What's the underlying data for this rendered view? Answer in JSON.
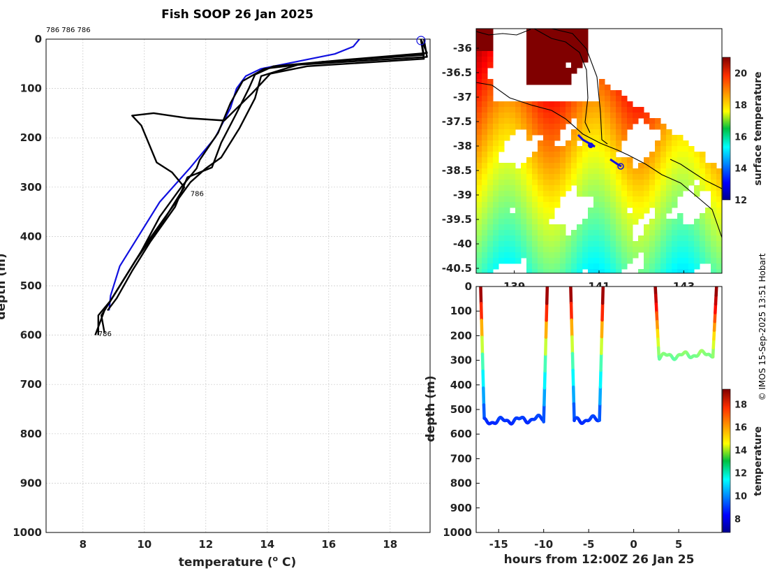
{
  "title": "Fish SOOP 26 Jan 2025",
  "credit": "© IMOS 15-Sep-2025 13:51 Hobart",
  "chart_data": [
    {
      "type": "line",
      "name": "profile",
      "title": "Fish SOOP 26 Jan 2025",
      "header_label": "786 786 786",
      "xlabel": "temperature (",
      "xlabel_sup": "o",
      "xlabel_end": " C)",
      "ylabel": "depth (m)",
      "xlim": [
        6.8,
        19.3
      ],
      "ylim": [
        0,
        1000
      ],
      "xticks": [
        8,
        10,
        12,
        14,
        16,
        18
      ],
      "yticks": [
        0,
        100,
        200,
        300,
        400,
        500,
        600,
        700,
        800,
        900,
        1000
      ],
      "annotations": [
        {
          "text": "786",
          "t": 11.5,
          "d": 318
        },
        {
          "text": "786",
          "t": 8.5,
          "d": 602
        }
      ],
      "series": [
        {
          "name": "blue reference",
          "color": "#1010e0",
          "points": [
            [
              17.0,
              0
            ],
            [
              16.8,
              15
            ],
            [
              16.2,
              30
            ],
            [
              15.0,
              45
            ],
            [
              13.8,
              60
            ],
            [
              13.3,
              75
            ],
            [
              13.0,
              100
            ],
            [
              12.8,
              140
            ],
            [
              12.3,
              200
            ],
            [
              11.5,
              260
            ],
            [
              10.5,
              330
            ],
            [
              9.8,
              400
            ],
            [
              9.2,
              460
            ],
            [
              8.9,
              520
            ],
            [
              8.85,
              550
            ]
          ]
        },
        {
          "name": "cast 1",
          "color": "#000000",
          "points": [
            [
              19.0,
              0
            ],
            [
              19.2,
              28
            ],
            [
              16.5,
              42
            ],
            [
              14.2,
              55
            ],
            [
              13.6,
              72
            ],
            [
              13.4,
              100
            ],
            [
              13.0,
              150
            ],
            [
              12.5,
              210
            ],
            [
              12.2,
              260
            ],
            [
              11.4,
              280
            ],
            [
              11.0,
              340
            ],
            [
              10.2,
              410
            ],
            [
              9.6,
              470
            ],
            [
              9.1,
              525
            ],
            [
              8.8,
              550
            ]
          ]
        },
        {
          "name": "cast 2",
          "color": "#000000",
          "points": [
            [
              19.0,
              0
            ],
            [
              19.1,
              32
            ],
            [
              15.8,
              46
            ],
            [
              13.9,
              60
            ],
            [
              13.2,
              85
            ],
            [
              12.8,
              130
            ],
            [
              12.4,
              190
            ],
            [
              11.8,
              245
            ],
            [
              11.7,
              262
            ],
            [
              11.2,
              300
            ],
            [
              10.5,
              360
            ],
            [
              9.9,
              430
            ],
            [
              9.2,
              500
            ],
            [
              8.7,
              550
            ],
            [
              8.4,
              600
            ]
          ]
        },
        {
          "name": "cast 3",
          "color": "#000000",
          "points": [
            [
              19.1,
              0
            ],
            [
              19.2,
              36
            ],
            [
              15.0,
              52
            ],
            [
              13.8,
              75
            ],
            [
              13.6,
              120
            ],
            [
              13.1,
              180
            ],
            [
              12.5,
              240
            ],
            [
              12.0,
              262
            ],
            [
              11.5,
              290
            ],
            [
              10.8,
              350
            ],
            [
              10.0,
              420
            ],
            [
              9.4,
              480
            ],
            [
              8.9,
              530
            ],
            [
              8.5,
              560
            ],
            [
              8.5,
              600
            ]
          ]
        },
        {
          "name": "cast 4",
          "color": "#000000",
          "points": [
            [
              19.0,
              0
            ],
            [
              19.1,
              40
            ],
            [
              15.3,
              55
            ],
            [
              14.1,
              70
            ],
            [
              13.5,
              110
            ],
            [
              12.6,
              165
            ],
            [
              11.4,
              160
            ],
            [
              10.3,
              150
            ],
            [
              9.6,
              155
            ],
            [
              9.9,
              175
            ],
            [
              10.4,
              250
            ],
            [
              10.9,
              270
            ],
            [
              11.3,
              300
            ],
            [
              10.6,
              370
            ],
            [
              9.7,
              450
            ],
            [
              9.0,
              520
            ],
            [
              8.6,
              560
            ],
            [
              8.7,
              595
            ]
          ]
        }
      ]
    },
    {
      "type": "heatmap",
      "name": "sst-map",
      "ylabel_ticks": [
        "-36",
        "-36.5",
        "-37",
        "-37.5",
        "-38",
        "-38.5",
        "-39",
        "-39.5",
        "-40",
        "-40.5"
      ],
      "lat_range": [
        -35.6,
        -40.6
      ],
      "lon_range": [
        138.1,
        143.9
      ],
      "xticks": [
        139,
        141,
        143
      ],
      "colorbar_label": "surface temperature",
      "colorbar_ticks": [
        12,
        14,
        16,
        18,
        20
      ],
      "colorbar_range": [
        12,
        21
      ]
    },
    {
      "type": "scatter",
      "name": "depth-time",
      "xlabel": "hours from 12:00Z 26 Jan 25",
      "ylabel": "depth (m)",
      "xlim": [
        -17.5,
        9.8
      ],
      "ylim": [
        0,
        1000
      ],
      "xticks": [
        -15,
        -10,
        -5,
        0,
        5
      ],
      "yticks": [
        0,
        100,
        200,
        300,
        400,
        500,
        600,
        700,
        800,
        900,
        1000
      ],
      "colorbar_label": "temperature",
      "colorbar_ticks": [
        8,
        10,
        12,
        14,
        16,
        18
      ],
      "colorbar_range": [
        6.8,
        19.3
      ],
      "segments": [
        {
          "t_start": -17.0,
          "t_end": -9.6,
          "bottom": 550
        },
        {
          "t_start": -7.0,
          "t_end": -3.4,
          "bottom": 545
        },
        {
          "t_start": 2.4,
          "t_end": 9.2,
          "bottom": 285
        }
      ]
    }
  ]
}
